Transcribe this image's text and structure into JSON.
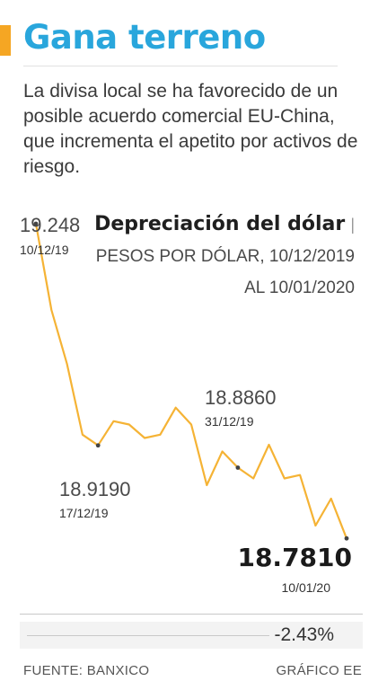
{
  "header": {
    "title": "Gana terreno",
    "subtitle": "La divisa local se ha favorecido de un posible acuerdo comercial EU-China, que incrementa el apetito por activos de riesgo."
  },
  "chart_title": {
    "bold": "Depreciación del dólar",
    "separator": "|",
    "unit": "PESOS POR DÓLAR, 10/12/2019 AL 10/01/2020"
  },
  "chart_data": {
    "type": "line",
    "y": [
      19.248,
      19.12,
      19.04,
      18.935,
      18.919,
      18.955,
      18.95,
      18.93,
      18.935,
      18.975,
      18.95,
      18.86,
      18.91,
      18.886,
      18.87,
      18.92,
      18.87,
      18.875,
      18.8,
      18.84,
      18.781
    ],
    "ylim": [
      18.7,
      19.3
    ],
    "annotations": [
      {
        "index": 0,
        "value": "19.248",
        "date": "10/12/19"
      },
      {
        "index": 4,
        "value": "18.9190",
        "date": "17/12/19"
      },
      {
        "index": 13,
        "value": "18.8860",
        "date": "31/12/19"
      },
      {
        "index": 20,
        "value": "18.7810",
        "date": "10/01/20"
      }
    ],
    "colors": {
      "line": "#f5b335",
      "marker": "#444444"
    }
  },
  "change": "-2.43%",
  "footer": {
    "source": "FUENTE: BANXICO",
    "credit": "GRÁFICO EE"
  }
}
